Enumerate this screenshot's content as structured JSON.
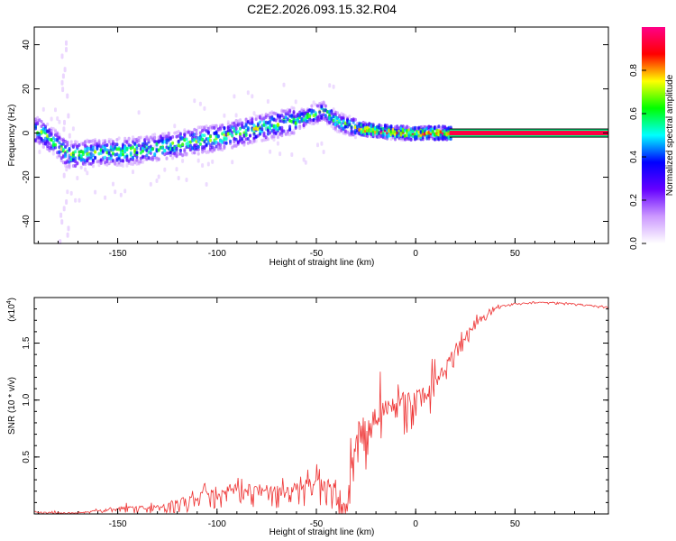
{
  "title": "C2E2.2026.093.15.32.R04",
  "chart_data": [
    {
      "type": "heatmap",
      "name": "spectrogram",
      "xlabel": "Height of straight line (km)",
      "ylabel": "Frequency (Hz)",
      "xlim": [
        -192,
        97
      ],
      "ylim": [
        -50,
        48
      ],
      "xticks": [
        -150,
        -100,
        -50,
        0,
        50
      ],
      "yticks": [
        -40,
        -20,
        0,
        20,
        40
      ],
      "colorbar": {
        "label": "Normalized spectral amplitude",
        "range": [
          0,
          1
        ],
        "ticks": [
          0.0,
          0.2,
          0.4,
          0.6,
          0.8
        ],
        "tick_labels": [
          "0.0",
          "0.2",
          "0.4",
          "0.6",
          "0.8"
        ],
        "colors": [
          "#ffffff",
          "#cc99ff",
          "#6600ff",
          "#0000ff",
          "#00ffff",
          "#00ff00",
          "#ffff00",
          "#ff0000",
          "#ff0088"
        ]
      },
      "ridge": {
        "x": [
          -190,
          -175,
          -160,
          -140,
          -120,
          -100,
          -80,
          -60,
          -50,
          -47,
          -40,
          -30,
          -20,
          -10,
          0,
          10,
          17,
          95
        ],
        "frequency": [
          1,
          -10,
          -9,
          -8,
          -5,
          -2,
          2,
          6,
          9,
          10,
          5,
          2,
          1,
          0,
          0,
          0,
          0,
          0
        ]
      }
    },
    {
      "type": "line",
      "name": "snr",
      "xlabel": "Height of straight line (km)",
      "ylabel": "SNR (10 * v/v)",
      "y_multiplier": "(x10",
      "y_multiplier_exp": "4",
      "xlim": [
        -192,
        97
      ],
      "ylim": [
        0,
        1.9
      ],
      "xticks": [
        -150,
        -100,
        -50,
        0,
        50
      ],
      "yticks": [
        0.5,
        1.0,
        1.5
      ],
      "series": [
        {
          "name": "SNR",
          "color": "#ee3333",
          "envelope_x": [
            -192,
            -170,
            -150,
            -130,
            -110,
            -90,
            -70,
            -50,
            -40,
            -35,
            -30,
            -20,
            -10,
            0,
            10,
            20,
            30,
            40,
            50,
            60,
            70,
            80,
            97
          ],
          "envelope_y": [
            0.02,
            0.01,
            0.06,
            0.08,
            0.18,
            0.28,
            0.26,
            0.32,
            0.3,
            0.1,
            0.8,
            0.95,
            1.05,
            1.1,
            1.2,
            1.5,
            1.7,
            1.82,
            1.85,
            1.86,
            1.86,
            1.85,
            1.82
          ],
          "noise_amp": [
            0.02,
            0.01,
            0.05,
            0.08,
            0.16,
            0.22,
            0.22,
            0.25,
            0.3,
            0.25,
            0.55,
            0.45,
            0.4,
            0.35,
            0.3,
            0.2,
            0.1,
            0.04,
            0.02,
            0.02,
            0.02,
            0.02,
            0.02
          ]
        }
      ]
    }
  ]
}
